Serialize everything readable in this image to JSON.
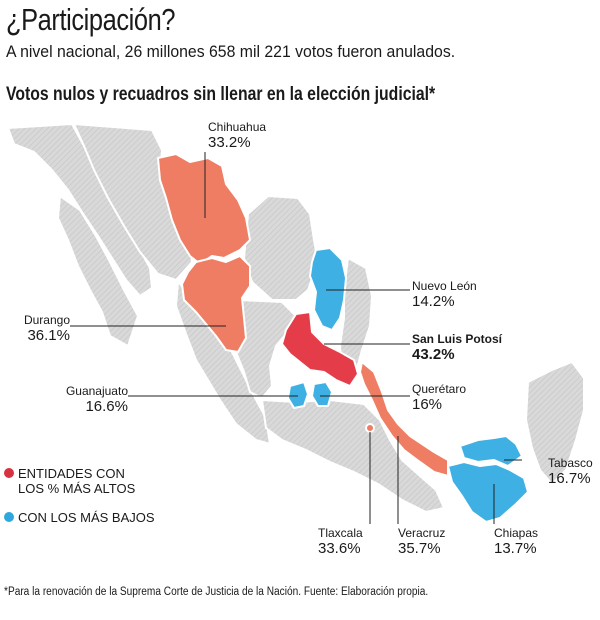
{
  "headline": "¿Participación?",
  "subheadline": "A nivel nacional, 26 millones 658 mil 221 votos fueron anulados.",
  "map_title": "Votos nulos y recuadros sin llenar en la elección judicial*",
  "colors": {
    "high": "#ee7d63",
    "highest": "#e43c49",
    "low": "#3fb0e4",
    "base": "#d9d9d9",
    "legend_high_dot": "#d8323f",
    "legend_low_dot": "#2ea8dc"
  },
  "states": {
    "chihuahua": {
      "name": "Chihuahua",
      "value": "33.2%",
      "group": "high"
    },
    "durango": {
      "name": "Durango",
      "value": "36.1%",
      "group": "high"
    },
    "guanajuato": {
      "name": "Guanajuato",
      "value": "16.6%",
      "group": "low"
    },
    "nuevo_leon": {
      "name": "Nuevo León",
      "value": "14.2%",
      "group": "low"
    },
    "san_luis_potosi": {
      "name": "San Luis Potosí",
      "value": "43.2%",
      "group": "highest"
    },
    "queretaro": {
      "name": "Querétaro",
      "value": "16%",
      "group": "low"
    },
    "tabasco": {
      "name": "Tabasco",
      "value": "16.7%",
      "group": "low"
    },
    "tlaxcala": {
      "name": "Tlaxcala",
      "value": "33.6%",
      "group": "high"
    },
    "veracruz": {
      "name": "Veracruz",
      "value": "35.7%",
      "group": "high"
    },
    "chiapas": {
      "name": "Chiapas",
      "value": "13.7%",
      "group": "low"
    }
  },
  "legend": {
    "high_line1": "ENTIDADES CON",
    "high_line2": "LOS % MÁS ALTOS",
    "low": "CON LOS MÁS BAJOS"
  },
  "footnote": "*Para la renovación de la Suprema Corte de Justicia de la Nación. Fuente: Elaboración propia."
}
